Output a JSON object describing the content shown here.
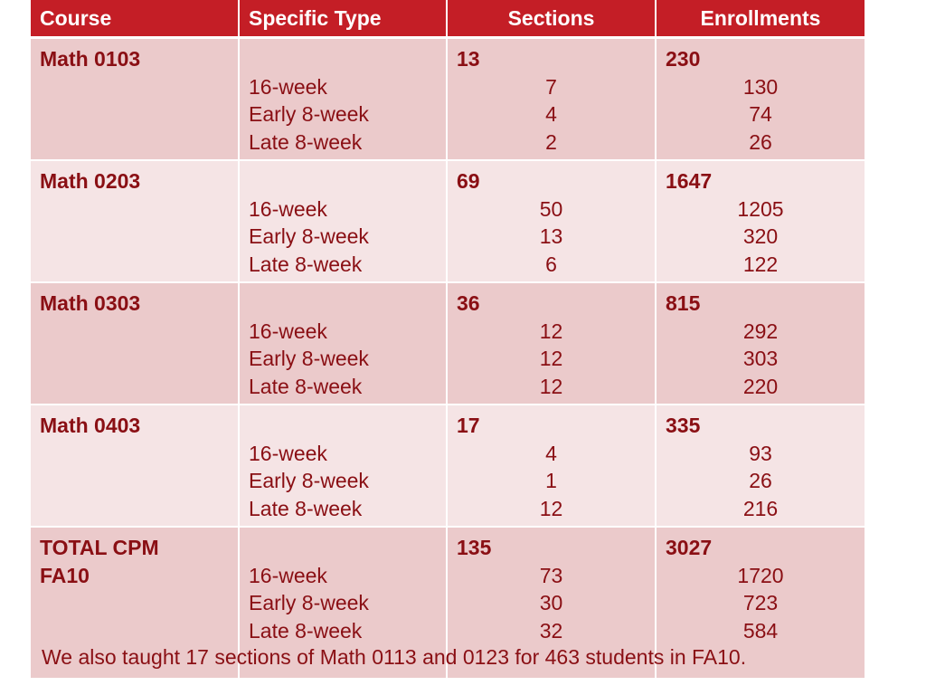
{
  "headers": {
    "course": "Course",
    "type": "Specific Type",
    "sections": "Sections",
    "enrollments": "Enrollments"
  },
  "rows": [
    {
      "course_line1": "Math 0103",
      "course_line2": "",
      "types": [
        "16-week",
        "Early 8-week",
        "Late 8-week"
      ],
      "sections_total": "13",
      "sections": [
        "7",
        "4",
        "2"
      ],
      "enroll_total": "230",
      "enroll": [
        "130",
        "74",
        "26"
      ]
    },
    {
      "course_line1": "Math 0203",
      "course_line2": "",
      "types": [
        "16-week",
        "Early 8-week",
        "Late 8-week"
      ],
      "sections_total": "69",
      "sections": [
        "50",
        "13",
        "6"
      ],
      "enroll_total": "1647",
      "enroll": [
        "1205",
        "320",
        "122"
      ]
    },
    {
      "course_line1": "Math 0303",
      "course_line2": "",
      "types": [
        "16-week",
        "Early 8-week",
        "Late 8-week"
      ],
      "sections_total": "36",
      "sections": [
        "12",
        "12",
        "12"
      ],
      "enroll_total": "815",
      "enroll": [
        "292",
        "303",
        "220"
      ]
    },
    {
      "course_line1": "Math 0403",
      "course_line2": "",
      "types": [
        "16-week",
        "Early 8-week",
        "Late 8-week"
      ],
      "sections_total": "17",
      "sections": [
        "4",
        "1",
        "12"
      ],
      "enroll_total": "335",
      "enroll": [
        "93",
        "26",
        "216"
      ]
    },
    {
      "course_line1": "TOTAL CPM",
      "course_line2": "FA10",
      "types": [
        "16-week",
        "Early 8-week",
        "Late 8-week"
      ],
      "sections_total": "135",
      "sections": [
        "73",
        "30",
        "32"
      ],
      "enroll_total": "3027",
      "enroll": [
        "1720",
        "723",
        "584"
      ]
    }
  ],
  "footnote": "We also taught 17 sections of Math 0113 and 0123 for 463 students in FA10.",
  "colors": {
    "header_bg": "#c41e26",
    "row_odd_bg": "#ebcacb",
    "row_even_bg": "#f5e4e5",
    "text": "#8a0f14"
  }
}
